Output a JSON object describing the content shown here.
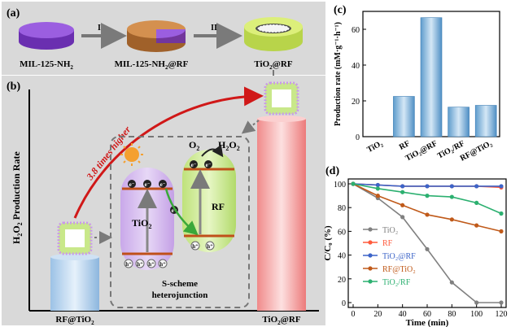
{
  "panel_labels": {
    "a": "(a)",
    "b": "(b)",
    "c": "(c)",
    "d": "(d)"
  },
  "panel_a": {
    "steps": [
      "I",
      "II"
    ],
    "materials": [
      "MIL-125-NH",
      "MIL-125-NH@RF",
      "TiO@RF"
    ],
    "materials_sub": [
      "2",
      "2",
      "2"
    ]
  },
  "panel_b": {
    "ylabel": "H2O2 Production Rate",
    "ylabel_subs": [
      "2",
      "2"
    ],
    "arrow_text": "3.8 times higher",
    "bars": [
      "RF@TiO",
      "TiO@RF"
    ],
    "bars_sub": [
      "2",
      "2"
    ],
    "scheme": {
      "left_semiconductor": "TiO",
      "left_sub": "2",
      "right_semiconductor": "RF",
      "reactant": "O",
      "reactant_sub": "2",
      "product": "HO",
      "product_subs": [
        "2",
        "2"
      ],
      "electron": "e⁻",
      "hole": "h⁺",
      "caption_line1": "S-scheme",
      "caption_line2": "heterojunction"
    }
  },
  "chart_data": [
    {
      "type": "bar",
      "panel": "(c)",
      "ylabel": "Production rate (mM·g⁻¹·h⁻¹)",
      "categories": [
        "TiO₂",
        "RF",
        "TiO₂@RF",
        "TiO₂/RF",
        "RF@TiO₂"
      ],
      "values": [
        0,
        22.5,
        66.5,
        16.5,
        17.5
      ],
      "ylim": [
        0,
        70
      ],
      "yticks": [
        0,
        20,
        40,
        60
      ],
      "grid": false
    },
    {
      "type": "line",
      "panel": "(d)",
      "xlabel": "Time (min)",
      "ylabel": "C/C₀ (%)",
      "xlim": [
        0,
        120
      ],
      "ylim": [
        0,
        100
      ],
      "xticks": [
        0,
        20,
        40,
        60,
        80,
        100,
        120
      ],
      "yticks": [
        0,
        20,
        40,
        60,
        80,
        100
      ],
      "legend_position": "bottom-left",
      "series": [
        {
          "name": "TiO₂",
          "color": "#808080",
          "x": [
            0,
            20,
            40,
            60,
            80,
            100,
            120
          ],
          "y": [
            100,
            88,
            72,
            45,
            17,
            0,
            0
          ]
        },
        {
          "name": "RF",
          "color": "#ff5a3c",
          "x": [
            0,
            20,
            40,
            60,
            80,
            100,
            120
          ],
          "y": [
            100,
            99,
            98,
            98,
            98,
            98,
            97
          ]
        },
        {
          "name": "TiO₂@RF",
          "color": "#3c64c8",
          "x": [
            0,
            20,
            40,
            60,
            80,
            100,
            120
          ],
          "y": [
            100,
            99,
            98,
            98,
            98,
            98,
            98
          ]
        },
        {
          "name": "RF@TiO₂",
          "color": "#c05a1a",
          "x": [
            0,
            20,
            40,
            60,
            80,
            100,
            120
          ],
          "y": [
            100,
            90,
            82,
            74,
            70,
            65,
            60
          ]
        },
        {
          "name": "TiO₂/RF",
          "color": "#2cb070",
          "x": [
            0,
            20,
            40,
            60,
            80,
            100,
            120
          ],
          "y": [
            100,
            96,
            93,
            90,
            89,
            84,
            75
          ]
        }
      ]
    }
  ]
}
